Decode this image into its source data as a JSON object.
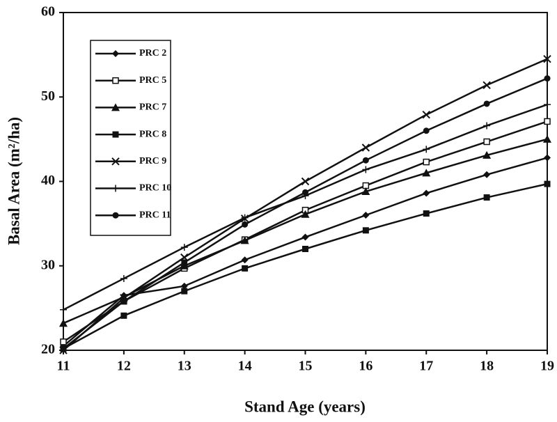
{
  "chart_data": {
    "type": "line",
    "x_label": "Stand Age (years)",
    "y_label": "Basal Area (m²/ha)",
    "x": [
      11,
      12,
      13,
      14,
      15,
      16,
      17,
      18,
      19
    ],
    "xlim": [
      11,
      19
    ],
    "xticks": [
      11,
      12,
      13,
      14,
      15,
      16,
      17,
      18,
      19
    ],
    "ylim": [
      20,
      60
    ],
    "yticks": [
      20,
      30,
      40,
      50,
      60
    ],
    "legend": "upper left",
    "series": [
      {
        "name": "PRC 2",
        "color": "#111111",
        "marker": "diamond",
        "values": [
          20.5,
          26.5,
          27.6,
          30.7,
          33.4,
          36,
          38.6,
          40.8,
          42.8
        ]
      },
      {
        "name": "PRC 5",
        "color": "#111111",
        "marker": "open-square",
        "values": [
          21,
          25.8,
          29.7,
          33.1,
          36.6,
          39.5,
          42.3,
          44.7,
          47.1
        ]
      },
      {
        "name": "PRC 7",
        "color": "#111111",
        "marker": "triangle",
        "values": [
          23.2,
          26.3,
          30,
          33,
          36.1,
          38.8,
          41,
          43.1,
          45
        ]
      },
      {
        "name": "PRC 8",
        "color": "#111111",
        "marker": "square",
        "values": [
          20.2,
          24.1,
          27,
          29.7,
          32,
          34.2,
          36.2,
          38.1,
          39.7
        ]
      },
      {
        "name": "PRC 9",
        "color": "#111111",
        "marker": "x",
        "values": [
          20,
          26.2,
          31,
          35.6,
          40,
          44,
          47.9,
          51.4,
          54.5
        ]
      },
      {
        "name": "PRC 10",
        "color": "#111111",
        "marker": "plus",
        "values": [
          24.8,
          28.5,
          32.2,
          35.7,
          38.3,
          41.4,
          43.8,
          46.6,
          49.1
        ]
      },
      {
        "name": "PRC 11",
        "color": "#111111",
        "marker": "circle",
        "values": [
          20.2,
          25.8,
          30.4,
          34.9,
          38.7,
          42.5,
          46,
          49.2,
          52.2
        ]
      }
    ]
  }
}
